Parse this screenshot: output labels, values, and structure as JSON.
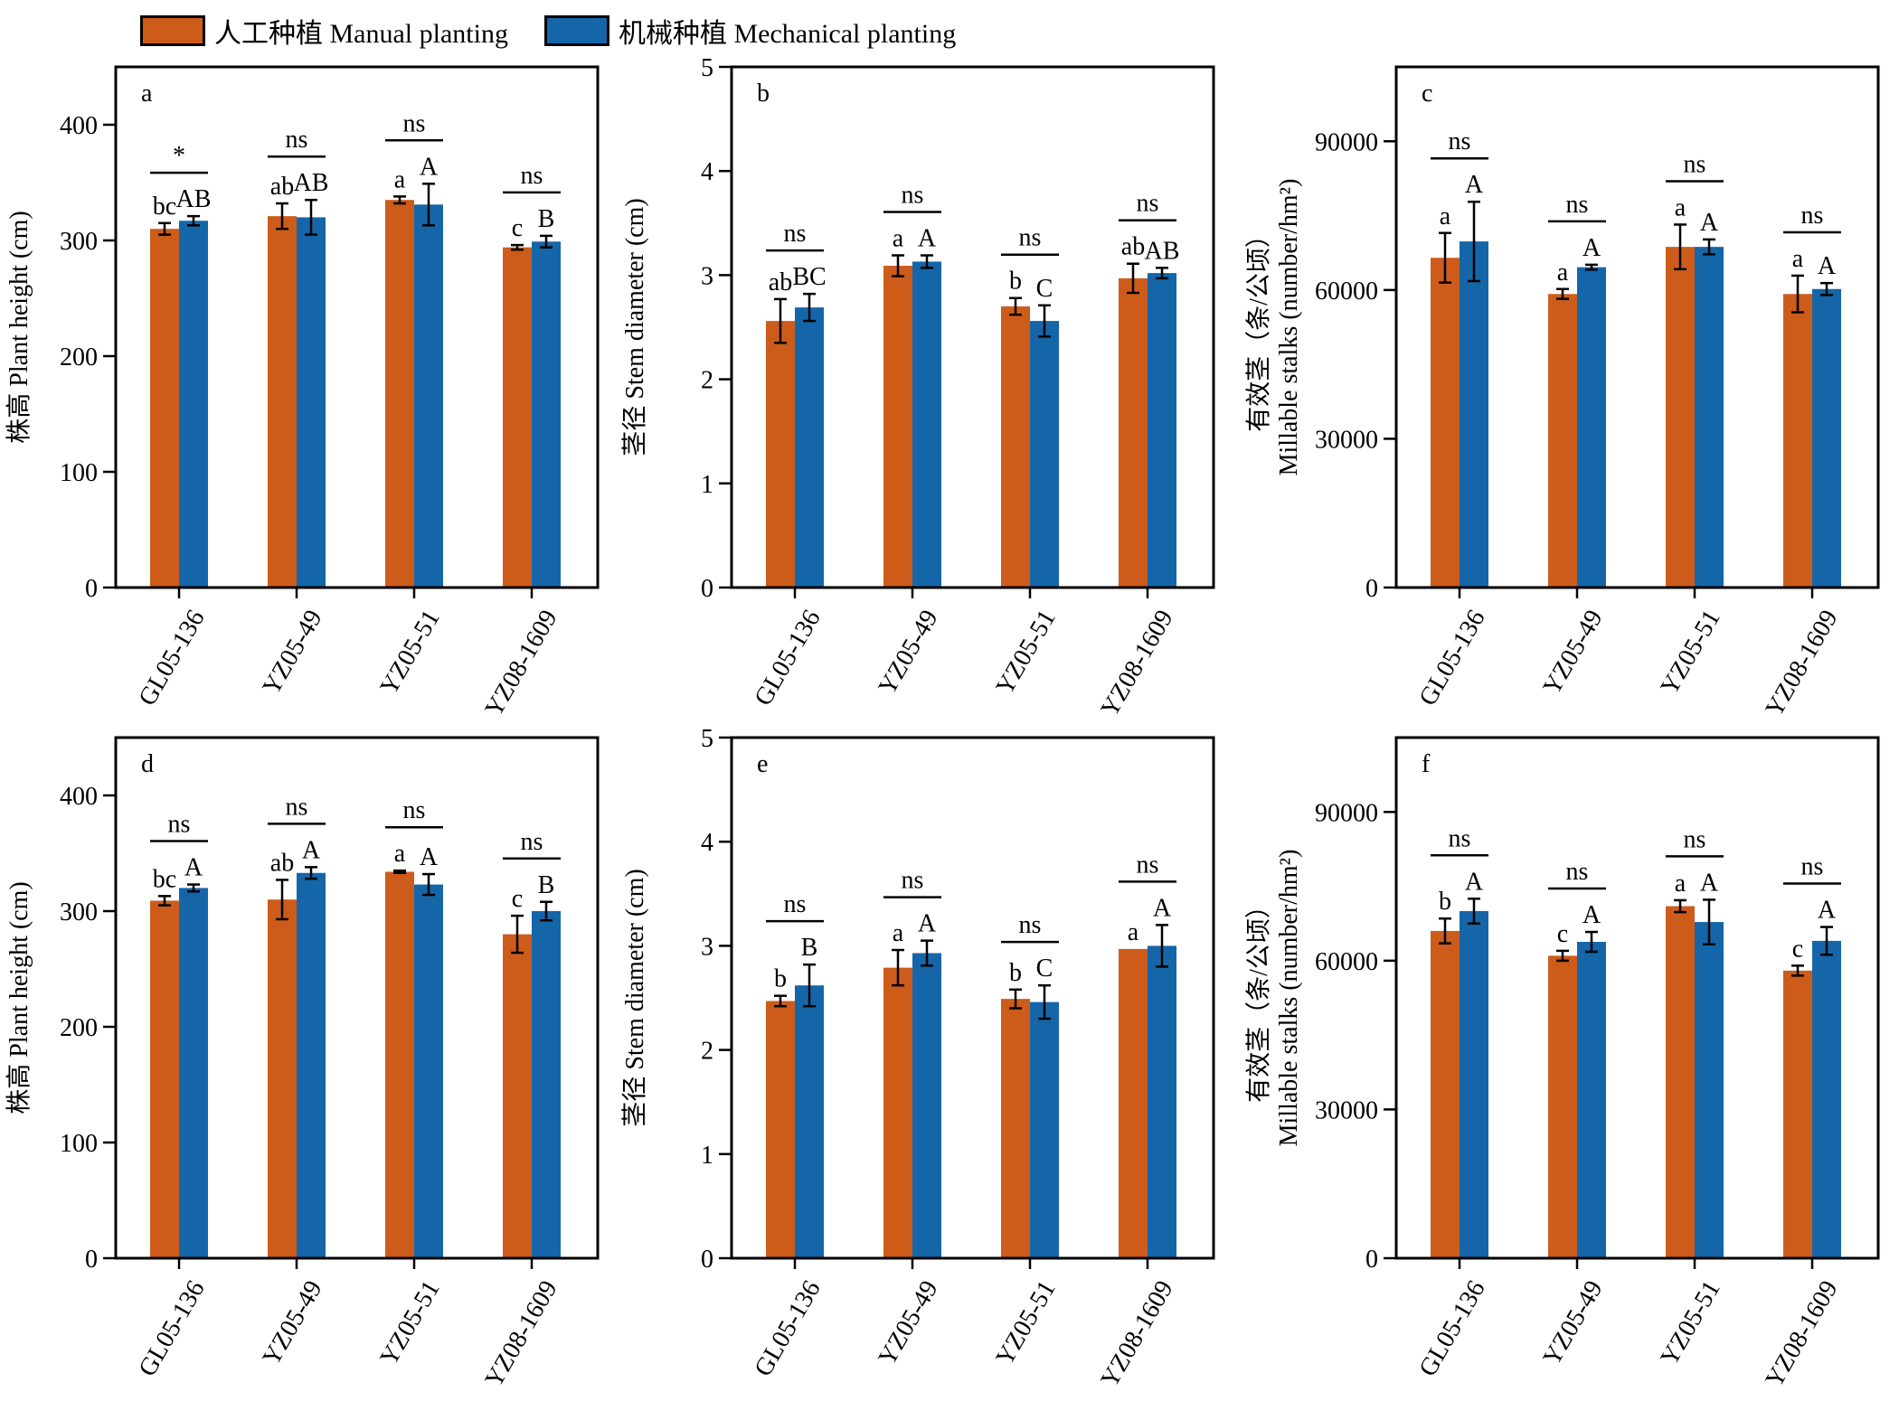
{
  "legend": {
    "manual": "人工种植 Manual planting",
    "mechanical": "机械种植 Mechanical planting"
  },
  "colors": {
    "manual": "#CD5C1B",
    "mechanical": "#1566A8"
  },
  "chart_data": [
    {
      "type": "bar",
      "panel": "a",
      "ylabel": "株高 Plant height (cm)",
      "categories": [
        "GL05-136",
        "YZ05-49",
        "YZ05-51",
        "YZ08-1609"
      ],
      "ylim": [
        0,
        450
      ],
      "yticks": [
        0,
        100,
        200,
        300,
        400
      ],
      "series": [
        {
          "name": "人工种植 Manual planting",
          "values": [
            310,
            321,
            335,
            294
          ],
          "errors": [
            5,
            11,
            3,
            2
          ],
          "letters": [
            "bc",
            "ab",
            "a",
            "c"
          ]
        },
        {
          "name": "机械种植 Mechanical planting",
          "values": [
            317,
            320,
            331,
            299
          ],
          "errors": [
            4,
            15,
            18,
            5
          ],
          "letters": [
            "AB",
            "AB",
            "A",
            "B"
          ]
        }
      ],
      "significance": [
        "*",
        "ns",
        "ns",
        "ns"
      ]
    },
    {
      "type": "bar",
      "panel": "b",
      "ylabel": "茎径 Stem diameter (cm)",
      "categories": [
        "GL05-136",
        "YZ05-49",
        "YZ05-51",
        "YZ08-1609"
      ],
      "ylim": [
        0,
        5
      ],
      "yticks": [
        0,
        1,
        2,
        3,
        4,
        5
      ],
      "series": [
        {
          "name": "人工种植 Manual planting",
          "values": [
            2.56,
            3.09,
            2.7,
            2.97
          ],
          "errors": [
            0.21,
            0.1,
            0.08,
            0.14
          ],
          "letters": [
            "ab",
            "a",
            "b",
            "ab"
          ]
        },
        {
          "name": "机械种植 Mechanical planting",
          "values": [
            2.69,
            3.13,
            2.56,
            3.02
          ],
          "errors": [
            0.13,
            0.06,
            0.15,
            0.05
          ],
          "letters": [
            "BC",
            "A",
            "C",
            "AB"
          ]
        }
      ],
      "significance": [
        "ns",
        "ns",
        "ns",
        "ns"
      ]
    },
    {
      "type": "bar",
      "panel": "c",
      "ylabel_top": "有效茎（条/公顷）",
      "ylabel": "Millable stalks (number/hm²)",
      "categories": [
        "GL05-136",
        "YZ05-49",
        "YZ05-51",
        "YZ08-1609"
      ],
      "ylim": [
        0,
        105000
      ],
      "yticks": [
        0,
        30000,
        60000,
        90000
      ],
      "series": [
        {
          "name": "人工种植 Manual planting",
          "values": [
            66500,
            59200,
            68700,
            59200
          ],
          "errors": [
            5000,
            1000,
            4500,
            3700
          ],
          "letters": [
            "a",
            "a",
            "a",
            "a"
          ]
        },
        {
          "name": "机械种植 Mechanical planting",
          "values": [
            69800,
            64600,
            68700,
            60200
          ],
          "errors": [
            8000,
            500,
            1500,
            1200
          ],
          "letters": [
            "A",
            "A",
            "A",
            "A"
          ]
        }
      ],
      "significance": [
        "ns",
        "ns",
        "ns",
        "ns"
      ]
    },
    {
      "type": "bar",
      "panel": "d",
      "ylabel": "株高 Plant height (cm)",
      "categories": [
        "GL05-136",
        "YZ05-49",
        "YZ05-51",
        "YZ08-1609"
      ],
      "ylim": [
        0,
        450
      ],
      "yticks": [
        0,
        100,
        200,
        300,
        400
      ],
      "series": [
        {
          "name": "人工种植 Manual planting",
          "values": [
            309,
            310,
            334,
            280
          ],
          "errors": [
            4,
            17,
            1,
            16
          ],
          "letters": [
            "bc",
            "ab",
            "a",
            "c"
          ]
        },
        {
          "name": "机械种植 Mechanical planting",
          "values": [
            320,
            333,
            323,
            300
          ],
          "errors": [
            3,
            5,
            9,
            8
          ],
          "letters": [
            "A",
            "A",
            "A",
            "B"
          ]
        }
      ],
      "significance": [
        "ns",
        "ns",
        "ns",
        "ns"
      ]
    },
    {
      "type": "bar",
      "panel": "e",
      "ylabel": "茎径 Stem diameter (cm)",
      "categories": [
        "GL05-136",
        "YZ05-49",
        "YZ05-51",
        "YZ08-1609"
      ],
      "ylim": [
        0,
        5
      ],
      "yticks": [
        0,
        1,
        2,
        3,
        4,
        5
      ],
      "series": [
        {
          "name": "人工种植 Manual planting",
          "values": [
            2.47,
            2.79,
            2.49,
            2.97
          ],
          "errors": [
            0.05,
            0.17,
            0.09,
            0.0
          ],
          "letters": [
            "b",
            "a",
            "b",
            "a"
          ]
        },
        {
          "name": "机械种植 Mechanical planting",
          "values": [
            2.62,
            2.93,
            2.46,
            3.0
          ],
          "errors": [
            0.2,
            0.12,
            0.16,
            0.2
          ],
          "letters": [
            "B",
            "A",
            "C",
            "A"
          ]
        }
      ],
      "significance": [
        "ns",
        "ns",
        "ns",
        "ns"
      ]
    },
    {
      "type": "bar",
      "panel": "f",
      "ylabel_top": "有效茎（条/公顷）",
      "ylabel": "Millable stalks (number/hm²)",
      "categories": [
        "GL05-136",
        "YZ05-49",
        "YZ05-51",
        "YZ08-1609"
      ],
      "ylim": [
        0,
        105000
      ],
      "yticks": [
        0,
        30000,
        60000,
        90000
      ],
      "series": [
        {
          "name": "人工种植 Manual planting",
          "values": [
            66000,
            61000,
            71000,
            58000
          ],
          "errors": [
            2500,
            1000,
            1200,
            1000
          ],
          "letters": [
            "b",
            "c",
            "a",
            "c"
          ]
        },
        {
          "name": "机械种植 Mechanical planting",
          "values": [
            70000,
            63800,
            67800,
            64000
          ],
          "errors": [
            2500,
            2000,
            4500,
            2800
          ],
          "letters": [
            "A",
            "A",
            "A",
            "A"
          ]
        }
      ],
      "significance": [
        "ns",
        "ns",
        "ns",
        "ns"
      ]
    }
  ]
}
